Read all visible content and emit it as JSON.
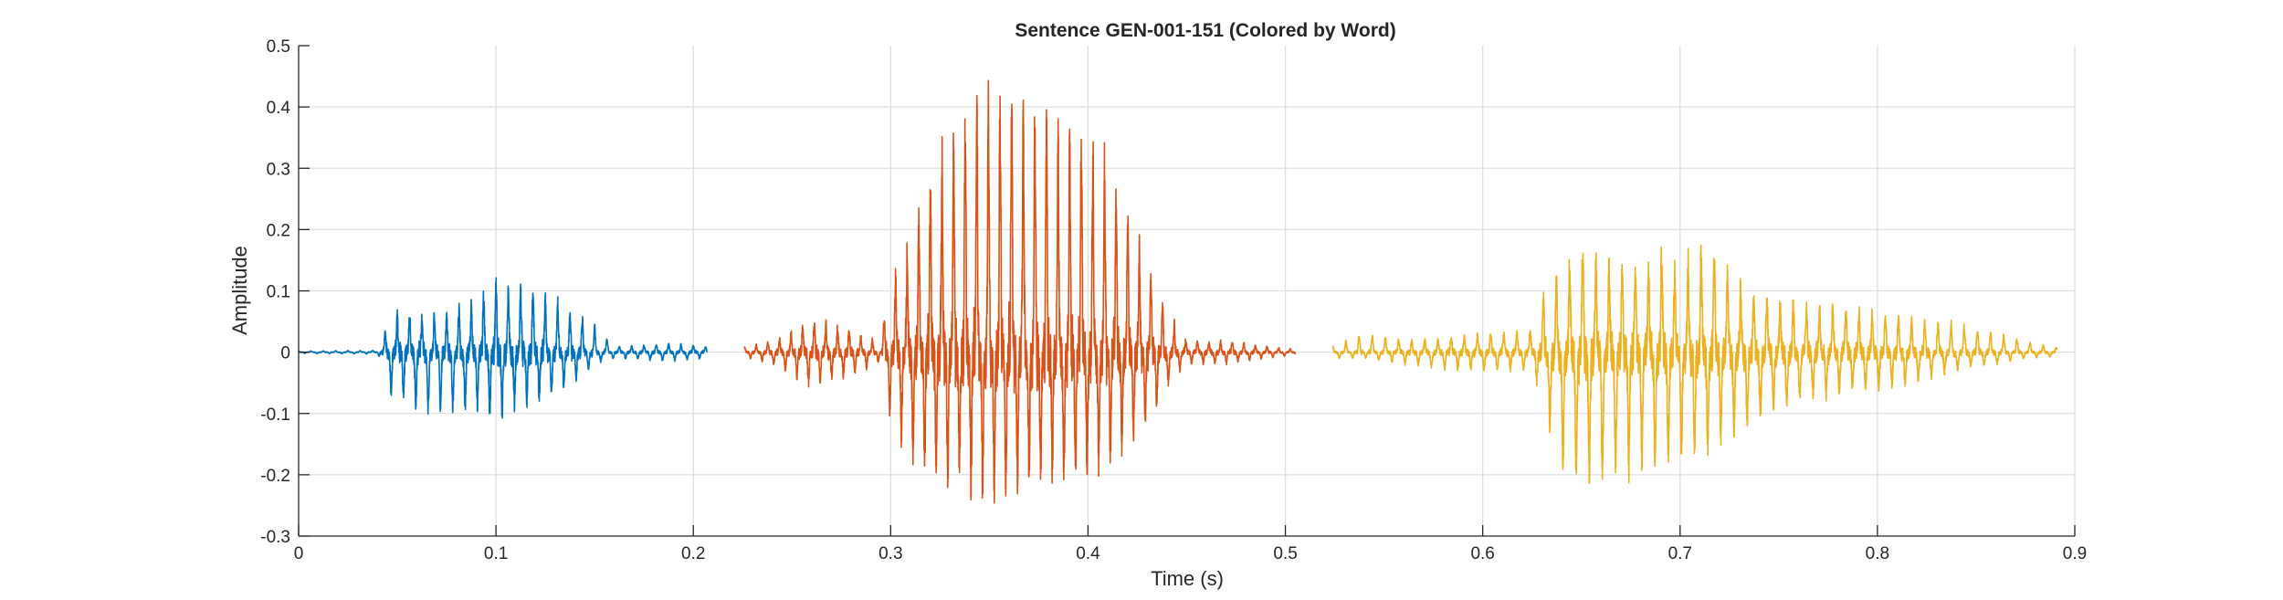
{
  "chart_data": {
    "type": "line",
    "title": "Sentence GEN-001-151 (Colored by Word)",
    "xlabel": "Time (s)",
    "ylabel": "Amplitude",
    "xlim": [
      0,
      0.9
    ],
    "ylim": [
      -0.3,
      0.5
    ],
    "xticks": [
      0,
      0.1,
      0.2,
      0.3,
      0.4,
      0.5,
      0.6,
      0.7,
      0.8,
      0.9
    ],
    "xtick_labels": [
      "0",
      "0.1",
      "0.2",
      "0.3",
      "0.4",
      "0.5",
      "0.6",
      "0.7",
      "0.8",
      "0.9"
    ],
    "yticks": [
      -0.3,
      -0.2,
      -0.1,
      0,
      0.1,
      0.2,
      0.3,
      0.4,
      0.5
    ],
    "ytick_labels": [
      "-0.3",
      "-0.2",
      "-0.1",
      "0",
      "0.1",
      "0.2",
      "0.3",
      "0.4",
      "0.5"
    ],
    "grid": true,
    "legend": "none",
    "series": [
      {
        "color": "#0072BD",
        "start": 0.0,
        "end": 0.207,
        "osc_hz": 160,
        "envelope": [
          [
            0.0,
            0.002,
            0.002
          ],
          [
            0.04,
            0.003,
            0.003
          ],
          [
            0.043,
            0.03,
            0.02
          ],
          [
            0.046,
            0.07,
            0.07
          ],
          [
            0.06,
            0.07,
            0.1
          ],
          [
            0.075,
            0.07,
            0.1
          ],
          [
            0.09,
            0.09,
            0.1
          ],
          [
            0.1,
            0.13,
            0.11
          ],
          [
            0.11,
            0.12,
            0.09
          ],
          [
            0.12,
            0.11,
            0.08
          ],
          [
            0.13,
            0.1,
            0.07
          ],
          [
            0.14,
            0.07,
            0.05
          ],
          [
            0.15,
            0.05,
            0.02
          ],
          [
            0.16,
            0.01,
            0.01
          ],
          [
            0.19,
            0.015,
            0.015
          ],
          [
            0.207,
            0.01,
            0.01
          ]
        ]
      },
      {
        "color": "#D95319",
        "start": 0.226,
        "end": 0.505,
        "osc_hz": 170,
        "envelope": [
          [
            0.226,
            0.008,
            0.008
          ],
          [
            0.24,
            0.02,
            0.02
          ],
          [
            0.26,
            0.055,
            0.06
          ],
          [
            0.28,
            0.04,
            0.04
          ],
          [
            0.295,
            0.015,
            0.015
          ],
          [
            0.298,
            0.1,
            0.09
          ],
          [
            0.31,
            0.2,
            0.18
          ],
          [
            0.32,
            0.32,
            0.21
          ],
          [
            0.33,
            0.4,
            0.22
          ],
          [
            0.34,
            0.45,
            0.23
          ],
          [
            0.35,
            0.49,
            0.25
          ],
          [
            0.36,
            0.48,
            0.24
          ],
          [
            0.37,
            0.46,
            0.23
          ],
          [
            0.38,
            0.44,
            0.22
          ],
          [
            0.39,
            0.41,
            0.22
          ],
          [
            0.4,
            0.39,
            0.21
          ],
          [
            0.41,
            0.33,
            0.19
          ],
          [
            0.42,
            0.25,
            0.16
          ],
          [
            0.43,
            0.16,
            0.12
          ],
          [
            0.44,
            0.07,
            0.06
          ],
          [
            0.45,
            0.02,
            0.02
          ],
          [
            0.47,
            0.02,
            0.02
          ],
          [
            0.49,
            0.01,
            0.01
          ],
          [
            0.505,
            0.005,
            0.005
          ]
        ]
      },
      {
        "color": "#EDB120",
        "start": 0.524,
        "end": 0.891,
        "osc_hz": 150,
        "envelope": [
          [
            0.524,
            0.01,
            0.01
          ],
          [
            0.54,
            0.035,
            0.01
          ],
          [
            0.56,
            0.02,
            0.02
          ],
          [
            0.58,
            0.025,
            0.03
          ],
          [
            0.61,
            0.035,
            0.03
          ],
          [
            0.625,
            0.04,
            0.03
          ],
          [
            0.63,
            0.1,
            0.08
          ],
          [
            0.64,
            0.15,
            0.2
          ],
          [
            0.65,
            0.19,
            0.21
          ],
          [
            0.66,
            0.16,
            0.22
          ],
          [
            0.67,
            0.15,
            0.21
          ],
          [
            0.68,
            0.16,
            0.2
          ],
          [
            0.69,
            0.17,
            0.19
          ],
          [
            0.7,
            0.15,
            0.18
          ],
          [
            0.71,
            0.19,
            0.17
          ],
          [
            0.72,
            0.17,
            0.15
          ],
          [
            0.73,
            0.12,
            0.13
          ],
          [
            0.74,
            0.1,
            0.12
          ],
          [
            0.75,
            0.09,
            0.1
          ],
          [
            0.76,
            0.09,
            0.08
          ],
          [
            0.78,
            0.08,
            0.07
          ],
          [
            0.8,
            0.07,
            0.06
          ],
          [
            0.82,
            0.06,
            0.05
          ],
          [
            0.84,
            0.05,
            0.03
          ],
          [
            0.86,
            0.035,
            0.02
          ],
          [
            0.875,
            0.02,
            0.01
          ],
          [
            0.891,
            0.008,
            0.008
          ]
        ]
      }
    ]
  }
}
